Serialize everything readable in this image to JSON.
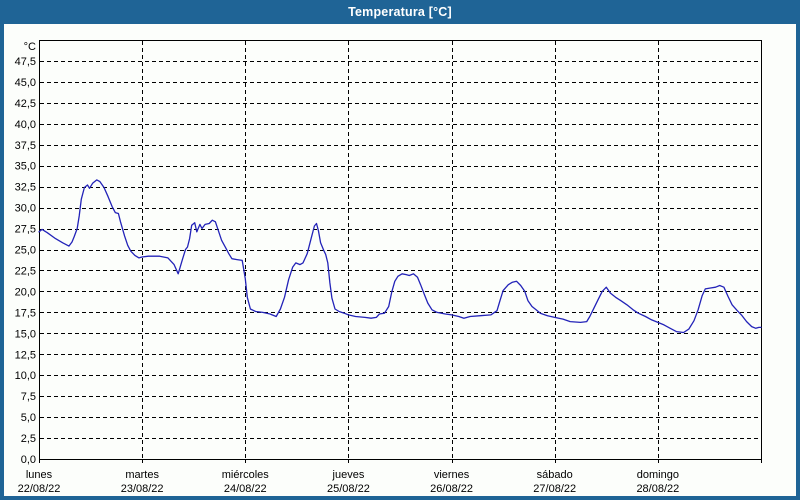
{
  "window": {
    "title": "Temperatura [°C]",
    "titlebar_color": "#1f6496",
    "border_color": "#1f6496",
    "background_color": "#fcfefb"
  },
  "chart_data": {
    "type": "line",
    "title": "Temperatura [°C]",
    "y_unit_label": "°C",
    "xlabel": "",
    "ylabel": "°C",
    "ylim": [
      0,
      50
    ],
    "y_tick_step": 2.5,
    "y_tick_max": 47.5,
    "y_tick_labels": [
      "0,0",
      "2,5",
      "5,0",
      "7,5",
      "10,0",
      "12,5",
      "15,0",
      "17,5",
      "20,0",
      "22,5",
      "25,0",
      "27,5",
      "30,0",
      "32,5",
      "35,0",
      "37,5",
      "40,0",
      "42,5",
      "45,0",
      "47,5"
    ],
    "x_days": 7,
    "grid": "dashed-black",
    "grid_color": "#000000",
    "line_color": "#2323b8",
    "axis_color": "#000000",
    "legend": "none",
    "categories": [
      {
        "day": "lunes",
        "date": "22/08/22"
      },
      {
        "day": "martes",
        "date": "23/08/22"
      },
      {
        "day": "miércoles",
        "date": "24/08/22"
      },
      {
        "day": "jueves",
        "date": "25/08/22"
      },
      {
        "day": "viernes",
        "date": "26/08/22"
      },
      {
        "day": "sábado",
        "date": "27/08/22"
      },
      {
        "day": "domingo",
        "date": "28/08/22"
      }
    ],
    "series": [
      {
        "name": "Temperatura",
        "x_unit": "days-from-monday-00h",
        "points": [
          [
            0.0,
            27.1
          ],
          [
            0.03,
            27.4
          ],
          [
            0.08,
            27.0
          ],
          [
            0.16,
            26.3
          ],
          [
            0.23,
            25.8
          ],
          [
            0.29,
            25.4
          ],
          [
            0.32,
            25.9
          ],
          [
            0.34,
            26.5
          ],
          [
            0.37,
            27.5
          ],
          [
            0.39,
            29.0
          ],
          [
            0.41,
            31.0
          ],
          [
            0.44,
            32.4
          ],
          [
            0.47,
            32.7
          ],
          [
            0.49,
            32.3
          ],
          [
            0.52,
            32.9
          ],
          [
            0.56,
            33.3
          ],
          [
            0.59,
            33.1
          ],
          [
            0.63,
            32.4
          ],
          [
            0.67,
            31.3
          ],
          [
            0.71,
            30.1
          ],
          [
            0.74,
            29.4
          ],
          [
            0.77,
            29.3
          ],
          [
            0.79,
            28.3
          ],
          [
            0.83,
            26.6
          ],
          [
            0.86,
            25.5
          ],
          [
            0.89,
            24.8
          ],
          [
            0.93,
            24.3
          ],
          [
            0.97,
            24.0
          ],
          [
            1.0,
            24.1
          ],
          [
            1.06,
            24.2
          ],
          [
            1.17,
            24.2
          ],
          [
            1.25,
            24.0
          ],
          [
            1.31,
            23.2
          ],
          [
            1.35,
            22.1
          ],
          [
            1.39,
            23.8
          ],
          [
            1.42,
            25.0
          ],
          [
            1.44,
            25.3
          ],
          [
            1.46,
            26.3
          ],
          [
            1.48,
            27.9
          ],
          [
            1.51,
            28.2
          ],
          [
            1.53,
            27.1
          ],
          [
            1.56,
            28.0
          ],
          [
            1.58,
            27.5
          ],
          [
            1.61,
            28.0
          ],
          [
            1.65,
            28.1
          ],
          [
            1.68,
            28.5
          ],
          [
            1.71,
            28.3
          ],
          [
            1.74,
            27.2
          ],
          [
            1.77,
            26.1
          ],
          [
            1.81,
            25.2
          ],
          [
            1.84,
            24.5
          ],
          [
            1.87,
            23.9
          ],
          [
            1.92,
            23.8
          ],
          [
            1.97,
            23.7
          ],
          [
            2.0,
            21.5
          ],
          [
            2.02,
            19.3
          ],
          [
            2.05,
            17.9
          ],
          [
            2.1,
            17.6
          ],
          [
            2.17,
            17.5
          ],
          [
            2.24,
            17.3
          ],
          [
            2.3,
            17.0
          ],
          [
            2.34,
            17.9
          ],
          [
            2.38,
            19.3
          ],
          [
            2.42,
            21.4
          ],
          [
            2.46,
            22.9
          ],
          [
            2.49,
            23.4
          ],
          [
            2.53,
            23.2
          ],
          [
            2.56,
            23.4
          ],
          [
            2.6,
            24.5
          ],
          [
            2.64,
            26.4
          ],
          [
            2.67,
            27.8
          ],
          [
            2.69,
            28.1
          ],
          [
            2.71,
            27.2
          ],
          [
            2.73,
            25.8
          ],
          [
            2.76,
            24.9
          ],
          [
            2.78,
            24.4
          ],
          [
            2.8,
            23.4
          ],
          [
            2.82,
            21.0
          ],
          [
            2.84,
            19.2
          ],
          [
            2.87,
            17.9
          ],
          [
            2.91,
            17.6
          ],
          [
            2.96,
            17.4
          ],
          [
            3.0,
            17.2
          ],
          [
            3.07,
            17.0
          ],
          [
            3.16,
            16.9
          ],
          [
            3.22,
            16.8
          ],
          [
            3.27,
            16.9
          ],
          [
            3.3,
            17.3
          ],
          [
            3.35,
            17.4
          ],
          [
            3.39,
            18.2
          ],
          [
            3.42,
            19.9
          ],
          [
            3.45,
            21.2
          ],
          [
            3.48,
            21.8
          ],
          [
            3.52,
            22.1
          ],
          [
            3.56,
            22.0
          ],
          [
            3.59,
            21.9
          ],
          [
            3.63,
            22.1
          ],
          [
            3.67,
            21.7
          ],
          [
            3.7,
            20.8
          ],
          [
            3.74,
            19.5
          ],
          [
            3.77,
            18.6
          ],
          [
            3.81,
            17.8
          ],
          [
            3.86,
            17.5
          ],
          [
            3.94,
            17.3
          ],
          [
            4.0,
            17.2
          ],
          [
            4.07,
            17.0
          ],
          [
            4.12,
            16.8
          ],
          [
            4.18,
            17.0
          ],
          [
            4.28,
            17.1
          ],
          [
            4.38,
            17.2
          ],
          [
            4.44,
            17.7
          ],
          [
            4.47,
            18.9
          ],
          [
            4.5,
            20.1
          ],
          [
            4.55,
            20.8
          ],
          [
            4.59,
            21.1
          ],
          [
            4.63,
            21.2
          ],
          [
            4.67,
            20.7
          ],
          [
            4.71,
            20.0
          ],
          [
            4.74,
            18.9
          ],
          [
            4.78,
            18.2
          ],
          [
            4.82,
            17.8
          ],
          [
            4.86,
            17.4
          ],
          [
            4.93,
            17.1
          ],
          [
            5.0,
            16.9
          ],
          [
            5.08,
            16.7
          ],
          [
            5.15,
            16.4
          ],
          [
            5.25,
            16.3
          ],
          [
            5.31,
            16.4
          ],
          [
            5.34,
            17.0
          ],
          [
            5.38,
            18.0
          ],
          [
            5.42,
            19.0
          ],
          [
            5.46,
            20.0
          ],
          [
            5.5,
            20.5
          ],
          [
            5.54,
            19.8
          ],
          [
            5.59,
            19.3
          ],
          [
            5.64,
            18.9
          ],
          [
            5.7,
            18.4
          ],
          [
            5.76,
            17.8
          ],
          [
            5.81,
            17.4
          ],
          [
            5.88,
            17.0
          ],
          [
            5.94,
            16.6
          ],
          [
            6.0,
            16.3
          ],
          [
            6.06,
            16.0
          ],
          [
            6.12,
            15.6
          ],
          [
            6.18,
            15.2
          ],
          [
            6.25,
            15.1
          ],
          [
            6.3,
            15.5
          ],
          [
            6.35,
            16.5
          ],
          [
            6.39,
            17.8
          ],
          [
            6.43,
            19.5
          ],
          [
            6.46,
            20.3
          ],
          [
            6.51,
            20.4
          ],
          [
            6.56,
            20.5
          ],
          [
            6.6,
            20.7
          ],
          [
            6.64,
            20.5
          ],
          [
            6.68,
            19.4
          ],
          [
            6.72,
            18.4
          ],
          [
            6.77,
            17.7
          ],
          [
            6.81,
            17.2
          ],
          [
            6.86,
            16.4
          ],
          [
            6.91,
            15.8
          ],
          [
            6.95,
            15.6
          ],
          [
            6.98,
            15.7
          ],
          [
            7.0,
            15.7
          ]
        ]
      }
    ]
  }
}
